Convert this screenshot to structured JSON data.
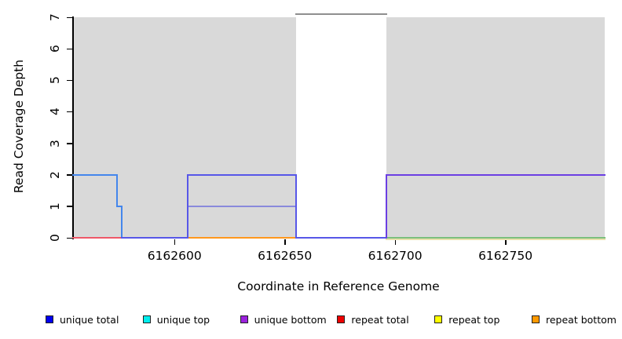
{
  "figure": {
    "x_axis_title": "Coordinate in Reference Genome",
    "y_axis_title": "Read Coverage Depth"
  },
  "legend": {
    "items": [
      {
        "id": "unique-total",
        "label": "unique total",
        "color": "#0000ee"
      },
      {
        "id": "unique-top",
        "label": "unique top",
        "color": "#00eeee"
      },
      {
        "id": "unique-bottom",
        "label": "unique bottom",
        "color": "#9b22dd"
      },
      {
        "id": "repeat-total",
        "label": "repeat total",
        "color": "#ee0000"
      },
      {
        "id": "repeat-top",
        "label": "repeat top",
        "color": "#ffff00"
      },
      {
        "id": "repeat-bottom",
        "label": "repeat bottom",
        "color": "#ff9900"
      }
    ]
  },
  "chart_data": {
    "type": "line",
    "title": "",
    "xlabel": "Coordinate in Reference Genome",
    "ylabel": "Read Coverage Depth",
    "xlim": [
      6162554,
      6162795
    ],
    "ylim": [
      0,
      7
    ],
    "x_ticks": [
      6162600,
      6162650,
      6162700,
      6162750
    ],
    "y_ticks": [
      0,
      1,
      2,
      3,
      4,
      5,
      6,
      7
    ],
    "grid": false,
    "legend_position": "bottom",
    "shaded_regions": [
      {
        "x1": 6162554,
        "x2": 6162655,
        "color": "#d9d9d9"
      },
      {
        "x1": 6162696,
        "x2": 6162795,
        "color": "#d9d9d9"
      }
    ],
    "series": [
      {
        "id": "repeat-top-baseline",
        "name": "repeat top (depth 0, right block)",
        "color": "#e9e2ae",
        "dy": 2,
        "points": [
          [
            6162696,
            0
          ],
          [
            6162795,
            0
          ]
        ]
      },
      {
        "id": "unique-top-repeat-top-overlap",
        "name": "unique/repeat top overlap (depth 0, right block)",
        "color": "#7cbf7c",
        "dy": 0,
        "points": [
          [
            6162696,
            0
          ],
          [
            6162795,
            0
          ]
        ]
      },
      {
        "id": "repeat-total-baseline",
        "name": "repeat total (depth 0, left block)",
        "color": "#ee5868",
        "dy": 0,
        "points": [
          [
            6162554,
            0
          ],
          [
            6162577,
            0
          ]
        ]
      },
      {
        "id": "repeat-bottom-baseline",
        "name": "repeat bottom (depth 0, middle block)",
        "color": "#ff981e",
        "dy": 0,
        "points": [
          [
            6162606,
            0
          ],
          [
            6162655,
            0
          ]
        ]
      },
      {
        "id": "unique-bottom-mid",
        "name": "unique bottom (depth 1, middle block)",
        "color": "#8a8adc",
        "dy": 0,
        "points": [
          [
            6162606,
            1
          ],
          [
            6162655,
            1
          ]
        ]
      },
      {
        "id": "unique-total-left",
        "name": "unique total (left block, steps 2-1-0)",
        "color": "#4486ec",
        "dy": 0,
        "points": [
          [
            6162554,
            2
          ],
          [
            6162574,
            2
          ],
          [
            6162574,
            1
          ],
          [
            6162576,
            1
          ],
          [
            6162576,
            0
          ]
        ]
      },
      {
        "id": "unique-total-mid",
        "name": "unique total+bottom (middle box at 2 and baseline through gap)",
        "color": "#5757e8",
        "dy": 0,
        "points": [
          [
            6162576,
            0
          ],
          [
            6162606,
            0
          ],
          [
            6162606,
            2
          ],
          [
            6162655,
            2
          ],
          [
            6162655,
            0
          ],
          [
            6162696,
            0
          ]
        ]
      },
      {
        "id": "unique-total-right",
        "name": "unique total+bottom (right block, depth 2)",
        "color": "#6b3fe3",
        "dy": 0,
        "points": [
          [
            6162696,
            0
          ],
          [
            6162696,
            2
          ],
          [
            6162795,
            2
          ]
        ]
      },
      {
        "id": "gap-clipped-top-line",
        "name": "clipped line at top of uncovered gap (depth 7)",
        "color": "#8f8f8f",
        "dy": -4,
        "points": [
          [
            6162655,
            7
          ],
          [
            6162696,
            7
          ]
        ]
      }
    ]
  }
}
